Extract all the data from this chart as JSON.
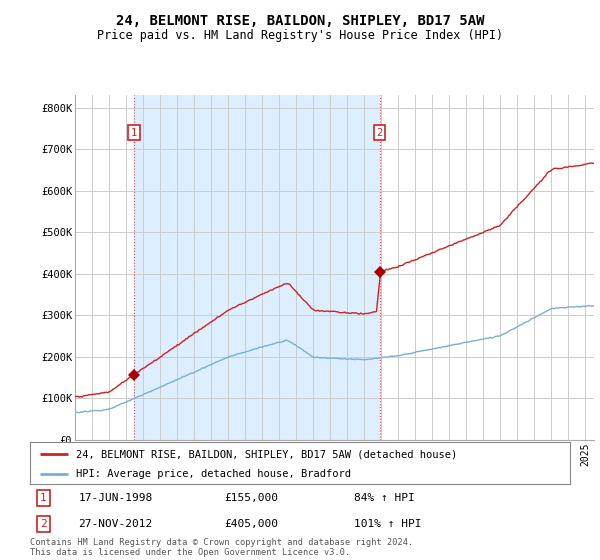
{
  "title": "24, BELMONT RISE, BAILDON, SHIPLEY, BD17 5AW",
  "subtitle": "Price paid vs. HM Land Registry's House Price Index (HPI)",
  "ylabel_ticks": [
    "£0",
    "£100K",
    "£200K",
    "£300K",
    "£400K",
    "£500K",
    "£600K",
    "£700K",
    "£800K"
  ],
  "ytick_values": [
    0,
    100000,
    200000,
    300000,
    400000,
    500000,
    600000,
    700000,
    800000
  ],
  "ylim": [
    0,
    830000
  ],
  "xlim_start": 1995.0,
  "xlim_end": 2025.5,
  "sale1_year": 1998.46,
  "sale1_price": 155000,
  "sale1_label": "1",
  "sale1_date": "17-JUN-1998",
  "sale1_hpi": "84% ↑ HPI",
  "sale2_year": 2012.9,
  "sale2_price": 405000,
  "sale2_label": "2",
  "sale2_date": "27-NOV-2012",
  "sale2_hpi": "101% ↑ HPI",
  "red_line_color": "#cc2222",
  "blue_line_color": "#7bafd4",
  "shade_color": "#ddeeff",
  "marker_color": "#aa0000",
  "grid_color": "#cccccc",
  "background_color": "#ffffff",
  "legend_label_red": "24, BELMONT RISE, BAILDON, SHIPLEY, BD17 5AW (detached house)",
  "legend_label_blue": "HPI: Average price, detached house, Bradford",
  "footer": "Contains HM Land Registry data © Crown copyright and database right 2024.\nThis data is licensed under the Open Government Licence v3.0.",
  "font_family": "DejaVu Sans Mono"
}
